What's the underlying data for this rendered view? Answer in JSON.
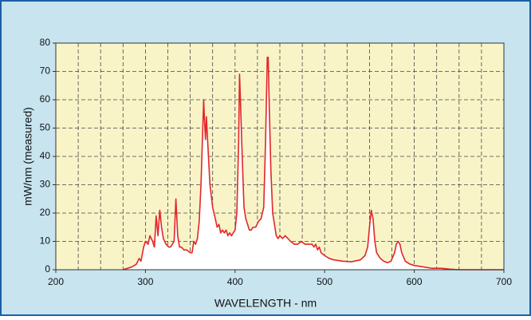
{
  "chart_data": {
    "type": "area-line",
    "xlabel": "WAVELENGTH - nm",
    "ylabel": "mW/nm (measured)",
    "xlim": [
      200,
      700
    ],
    "xticks": [
      200,
      300,
      400,
      500,
      600,
      700
    ],
    "xgrid": [
      225,
      250,
      275,
      300,
      325,
      350,
      375,
      400,
      425,
      450,
      475,
      500,
      525,
      550,
      575,
      600,
      625,
      650,
      675
    ],
    "ylim": [
      0,
      80
    ],
    "yticks": [
      0,
      10,
      20,
      30,
      40,
      50,
      60,
      70,
      80
    ],
    "grid": true,
    "color": "#e3262b",
    "fill": "#ffffff",
    "x": [
      275,
      285,
      290,
      293,
      295,
      298,
      300,
      303,
      305,
      308,
      310,
      312,
      314,
      316,
      318,
      320,
      323,
      326,
      328,
      330,
      332,
      334,
      336,
      338,
      340,
      343,
      346,
      350,
      352,
      354,
      356,
      358,
      360,
      362,
      364,
      365,
      366,
      367,
      368,
      370,
      372,
      375,
      378,
      380,
      382,
      384,
      386,
      388,
      390,
      392,
      394,
      396,
      398,
      400,
      402,
      404,
      405,
      406,
      408,
      410,
      412,
      414,
      416,
      418,
      420,
      423,
      426,
      429,
      432,
      434,
      435,
      436,
      437,
      438,
      440,
      442,
      444,
      446,
      448,
      450,
      453,
      456,
      459,
      462,
      466,
      470,
      474,
      478,
      482,
      486,
      488,
      490,
      492,
      494,
      496,
      500,
      505,
      510,
      520,
      530,
      540,
      545,
      548,
      550,
      552,
      554,
      556,
      558,
      562,
      566,
      570,
      574,
      578,
      580,
      582,
      584,
      586,
      590,
      595,
      600,
      610,
      620,
      630,
      640,
      650,
      660,
      680,
      700
    ],
    "values": [
      0,
      1,
      2,
      4,
      3,
      8,
      10,
      9,
      12,
      10,
      8,
      19,
      12,
      21,
      15,
      11,
      9,
      8,
      8,
      9,
      10,
      25,
      12,
      8,
      8,
      7,
      7,
      6,
      6,
      10,
      9,
      11,
      17,
      30,
      50,
      60,
      52,
      46,
      54,
      42,
      30,
      22,
      18,
      15,
      16,
      13,
      14,
      13,
      14,
      12,
      13,
      12,
      13,
      14,
      20,
      45,
      69,
      60,
      40,
      22,
      18,
      16,
      14,
      14,
      15,
      15,
      17,
      18,
      22,
      45,
      60,
      75,
      75,
      60,
      35,
      20,
      16,
      12,
      11,
      12,
      11,
      12,
      11,
      10,
      9,
      9,
      10,
      9,
      9,
      9,
      8,
      9,
      7,
      8,
      6,
      5,
      4,
      3.5,
      3,
      2.8,
      3.5,
      5,
      8,
      15,
      21,
      18,
      10,
      6,
      4,
      3,
      2.5,
      3,
      6,
      9,
      10,
      9,
      6,
      3,
      2,
      1.5,
      1,
      0.5,
      0.5,
      0.2,
      0,
      0,
      0,
      0
    ]
  }
}
